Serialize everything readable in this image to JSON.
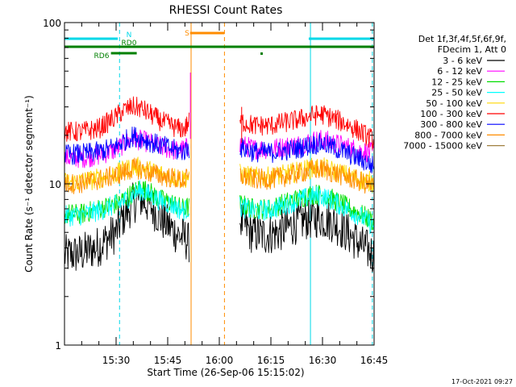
{
  "chart_data": {
    "type": "line",
    "title": "RHESSI Count Rates",
    "xlabel": "Start Time (26-Sep-06 15:15:02)",
    "ylabel": "Count Rate (s⁻¹ detector segment⁻¹)",
    "x_unit": "minutes since 15:15:02",
    "xlim": [
      0,
      90
    ],
    "ylim": [
      1,
      100
    ],
    "y_scale": "log",
    "x_ticks": [
      {
        "x": 15,
        "label": "15:30"
      },
      {
        "x": 30,
        "label": "15:45"
      },
      {
        "x": 45,
        "label": "16:00"
      },
      {
        "x": 60,
        "label": "16:15"
      },
      {
        "x": 75,
        "label": "16:30"
      },
      {
        "x": 90,
        "label": "16:45"
      }
    ],
    "y_ticks": [
      {
        "y": 1,
        "label": "1"
      },
      {
        "y": 10,
        "label": "10"
      },
      {
        "y": 100,
        "label": "100"
      }
    ],
    "legend": {
      "header": [
        "Det 1f,3f,4f,5f,6f,9f,",
        "FDecim 1, Att 0"
      ],
      "placement": "right"
    },
    "series": [
      {
        "name": "3 - 6 keV",
        "color": "#000000",
        "points": [
          [
            0,
            3.6
          ],
          [
            5,
            3.7
          ],
          [
            10,
            4.1
          ],
          [
            15,
            5.0
          ],
          [
            17,
            6.2
          ],
          [
            20,
            7.6
          ],
          [
            22,
            8.1
          ],
          [
            25,
            7.3
          ],
          [
            28,
            6.1
          ],
          [
            31,
            5.3
          ],
          [
            33,
            4.8
          ],
          [
            35,
            4.6
          ],
          [
            36,
            4.3
          ],
          [
            51,
            6.0
          ],
          [
            54,
            5.0
          ],
          [
            58,
            4.8
          ],
          [
            62,
            5.0
          ],
          [
            66,
            5.5
          ],
          [
            70,
            6.0
          ],
          [
            74,
            6.2
          ],
          [
            78,
            5.8
          ],
          [
            82,
            5.0
          ],
          [
            86,
            4.2
          ],
          [
            90,
            3.6
          ]
        ]
      },
      {
        "name": "6 - 12 keV",
        "color": "#ff00ff",
        "points": [
          [
            0,
            14.5
          ],
          [
            5,
            14.5
          ],
          [
            10,
            15.0
          ],
          [
            15,
            16.3
          ],
          [
            17,
            17.5
          ],
          [
            20,
            19.0
          ],
          [
            23,
            18.5
          ],
          [
            26,
            17.5
          ],
          [
            30,
            16.5
          ],
          [
            33,
            16.0
          ],
          [
            35,
            16.5
          ],
          [
            36,
            17.0
          ],
          [
            51,
            17.5
          ],
          [
            55,
            16.5
          ],
          [
            60,
            16.5
          ],
          [
            64,
            17.0
          ],
          [
            68,
            17.5
          ],
          [
            72,
            18.5
          ],
          [
            75,
            18.8
          ],
          [
            78,
            18.0
          ],
          [
            82,
            17.0
          ],
          [
            86,
            16.0
          ],
          [
            90,
            15.5
          ]
        ]
      },
      {
        "name": "12 - 25 keV",
        "color": "#00dd00",
        "points": [
          [
            0,
            6.5
          ],
          [
            5,
            6.5
          ],
          [
            10,
            7.0
          ],
          [
            15,
            7.5
          ],
          [
            18,
            8.2
          ],
          [
            20,
            8.8
          ],
          [
            22,
            9.5
          ],
          [
            25,
            8.8
          ],
          [
            28,
            8.0
          ],
          [
            32,
            7.5
          ],
          [
            34,
            7.0
          ],
          [
            36,
            7.2
          ],
          [
            51,
            7.5
          ],
          [
            55,
            7.0
          ],
          [
            60,
            7.0
          ],
          [
            64,
            7.6
          ],
          [
            68,
            8.1
          ],
          [
            72,
            8.6
          ],
          [
            75,
            8.6
          ],
          [
            78,
            8.0
          ],
          [
            82,
            7.2
          ],
          [
            86,
            6.5
          ],
          [
            90,
            5.8
          ]
        ]
      },
      {
        "name": "25 - 50 keV",
        "color": "#00ffff",
        "points": [
          [
            0,
            6.3
          ],
          [
            5,
            6.4
          ],
          [
            10,
            6.8
          ],
          [
            15,
            7.4
          ],
          [
            18,
            8.0
          ],
          [
            20,
            8.6
          ],
          [
            22,
            9.1
          ],
          [
            25,
            8.5
          ],
          [
            28,
            7.8
          ],
          [
            32,
            7.3
          ],
          [
            34,
            6.8
          ],
          [
            36,
            7.0
          ],
          [
            51,
            7.2
          ],
          [
            55,
            6.8
          ],
          [
            60,
            6.9
          ],
          [
            64,
            7.4
          ],
          [
            68,
            7.9
          ],
          [
            72,
            8.4
          ],
          [
            75,
            8.4
          ],
          [
            78,
            7.8
          ],
          [
            82,
            7.0
          ],
          [
            86,
            6.3
          ],
          [
            90,
            5.4
          ]
        ]
      },
      {
        "name": "50 - 100 keV",
        "color": "#ffd700",
        "points": [
          [
            0,
            10.2
          ],
          [
            5,
            10.3
          ],
          [
            10,
            10.8
          ],
          [
            15,
            11.5
          ],
          [
            18,
            12.2
          ],
          [
            20,
            12.8
          ],
          [
            22,
            12.6
          ],
          [
            25,
            12.0
          ],
          [
            28,
            11.5
          ],
          [
            32,
            11.0
          ],
          [
            34,
            10.7
          ],
          [
            36,
            11.0
          ],
          [
            51,
            11.5
          ],
          [
            55,
            11.0
          ],
          [
            60,
            11.0
          ],
          [
            64,
            11.4
          ],
          [
            68,
            11.9
          ],
          [
            72,
            12.5
          ],
          [
            75,
            12.6
          ],
          [
            78,
            12.0
          ],
          [
            82,
            11.3
          ],
          [
            86,
            10.6
          ],
          [
            90,
            10.2
          ]
        ]
      },
      {
        "name": "100 - 300 keV",
        "color": "#ff0000",
        "points": [
          [
            0,
            21.0
          ],
          [
            5,
            21.0
          ],
          [
            10,
            22.0
          ],
          [
            15,
            26.0
          ],
          [
            17,
            28.5
          ],
          [
            20,
            30.0
          ],
          [
            22,
            29.5
          ],
          [
            25,
            27.0
          ],
          [
            28,
            24.5
          ],
          [
            31,
            23.0
          ],
          [
            33,
            22.0
          ],
          [
            35,
            22.0
          ],
          [
            36,
            24.0
          ],
          [
            51,
            24.5
          ],
          [
            55,
            23.0
          ],
          [
            60,
            23.0
          ],
          [
            64,
            24.0
          ],
          [
            68,
            25.0
          ],
          [
            72,
            26.5
          ],
          [
            75,
            27.0
          ],
          [
            78,
            25.5
          ],
          [
            82,
            23.5
          ],
          [
            86,
            21.0
          ],
          [
            90,
            18.5
          ]
        ]
      },
      {
        "name": "300 - 800 keV",
        "color": "#0000ff",
        "points": [
          [
            0,
            15.2
          ],
          [
            5,
            15.3
          ],
          [
            10,
            15.8
          ],
          [
            15,
            17.0
          ],
          [
            17,
            18.3
          ],
          [
            20,
            19.8
          ],
          [
            23,
            19.0
          ],
          [
            26,
            17.8
          ],
          [
            30,
            16.8
          ],
          [
            33,
            16.0
          ],
          [
            35,
            16.0
          ],
          [
            36,
            16.5
          ],
          [
            51,
            16.8
          ],
          [
            55,
            15.8
          ],
          [
            60,
            15.6
          ],
          [
            64,
            16.0
          ],
          [
            68,
            16.6
          ],
          [
            72,
            17.5
          ],
          [
            75,
            17.8
          ],
          [
            78,
            16.8
          ],
          [
            82,
            15.5
          ],
          [
            86,
            14.2
          ],
          [
            90,
            12.8
          ]
        ]
      },
      {
        "name": "800 - 7000 keV",
        "color": "#ff8c00",
        "points": [
          [
            0,
            10.0
          ],
          [
            5,
            10.1
          ],
          [
            10,
            10.6
          ],
          [
            15,
            11.3
          ],
          [
            18,
            11.9
          ],
          [
            20,
            12.5
          ],
          [
            22,
            12.3
          ],
          [
            25,
            11.7
          ],
          [
            28,
            11.2
          ],
          [
            32,
            10.8
          ],
          [
            34,
            10.5
          ],
          [
            36,
            10.8
          ],
          [
            51,
            11.2
          ],
          [
            55,
            10.7
          ],
          [
            60,
            10.7
          ],
          [
            64,
            11.1
          ],
          [
            68,
            11.6
          ],
          [
            72,
            12.2
          ],
          [
            75,
            12.3
          ],
          [
            78,
            11.7
          ],
          [
            82,
            11.0
          ],
          [
            86,
            10.3
          ],
          [
            90,
            9.6
          ]
        ]
      },
      {
        "name": "7000 - 15000 keV",
        "color": "#a08040",
        "points": []
      }
    ],
    "annotations": {
      "markers": [
        {
          "label": "N",
          "color": "#00d8e8",
          "segments": [
            [
              0,
              15.5
            ],
            [
              71,
              90
            ]
          ]
        },
        {
          "label": "RD0",
          "color": "#008000",
          "segments": [
            [
              0,
              90
            ]
          ]
        },
        {
          "label": "RD6",
          "color": "#008000",
          "segments": [
            [
              13.5,
              21
            ]
          ]
        },
        {
          "label": "S",
          "color": "#ff8c00",
          "segments": [
            [
              36.5,
              46.5
            ]
          ]
        }
      ],
      "vertical_lines": [
        {
          "x": 16,
          "color": "#00d8e8",
          "style": "dashed"
        },
        {
          "x": 71.5,
          "color": "#00d8e8",
          "style": "solid"
        },
        {
          "x": 89.5,
          "color": "#00d8e8",
          "style": "dashed"
        },
        {
          "x": 36.8,
          "color": "#ff8c00",
          "style": "solid"
        },
        {
          "x": 46.5,
          "color": "#ff8c00",
          "style": "dashed"
        }
      ]
    },
    "timestamp": "17-Oct-2021 09:27"
  }
}
